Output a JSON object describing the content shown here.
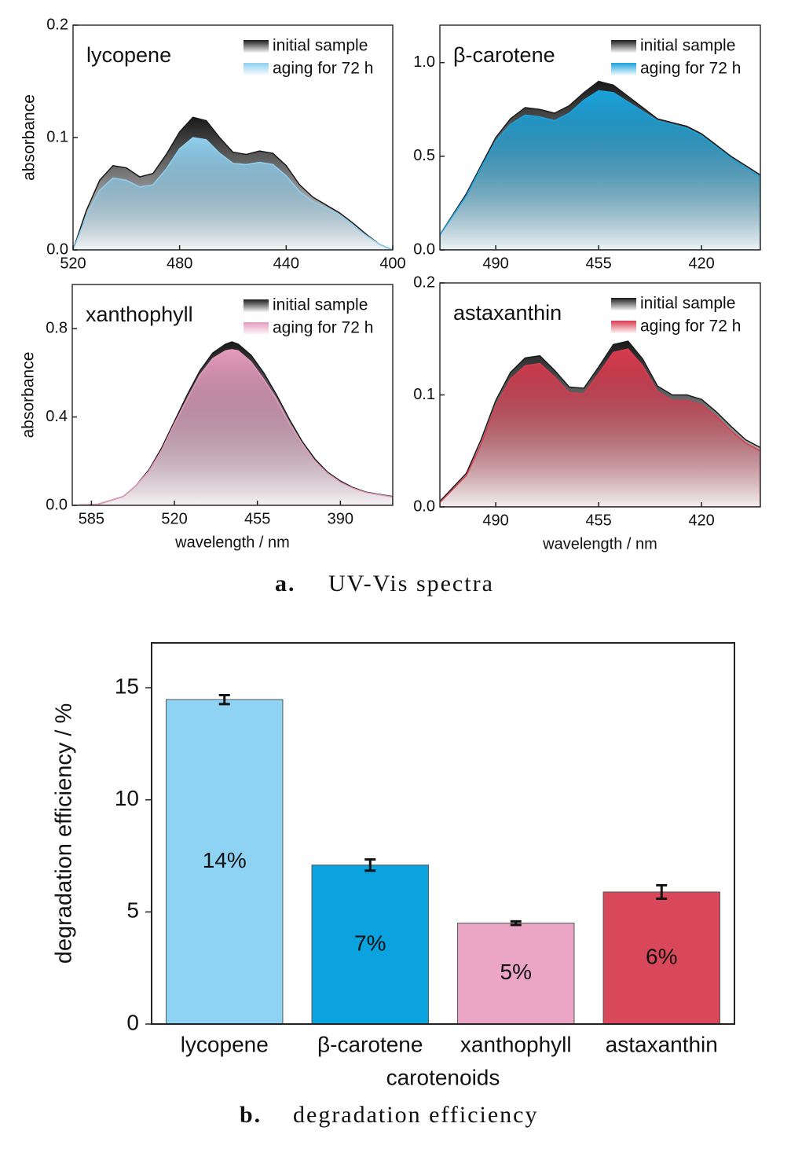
{
  "chart_data": [
    {
      "type": "area",
      "title": "lycopene",
      "y_label": "absorbance",
      "legend": "upper right",
      "x": [
        520,
        515,
        510,
        505,
        500,
        495,
        490,
        485,
        480,
        475,
        470,
        465,
        460,
        455,
        450,
        445,
        440,
        435,
        430,
        425,
        420,
        415,
        410,
        405,
        400
      ],
      "series": [
        {
          "name": "initial sample",
          "color": "#1a1a1a",
          "values": [
            0,
            0.035,
            0.062,
            0.075,
            0.073,
            0.065,
            0.068,
            0.085,
            0.105,
            0.118,
            0.115,
            0.1,
            0.087,
            0.085,
            0.088,
            0.086,
            0.075,
            0.058,
            0.047,
            0.04,
            0.033,
            0.024,
            0.014,
            0.005,
            0
          ]
        },
        {
          "name": "aging for 72 h",
          "color": "#8fd0f0",
          "values": [
            0,
            0.03,
            0.053,
            0.064,
            0.062,
            0.056,
            0.058,
            0.072,
            0.09,
            0.1,
            0.098,
            0.086,
            0.077,
            0.076,
            0.078,
            0.076,
            0.066,
            0.052,
            0.043,
            0.037,
            0.031,
            0.022,
            0.013,
            0.005,
            0
          ]
        }
      ],
      "xlim": [
        520,
        400
      ],
      "ylim": [
        0,
        0.2
      ],
      "xticks": [
        520,
        480,
        440,
        400
      ],
      "yticks": [
        {
          "value": 0,
          "label": "0.0"
        },
        0.1,
        0.2
      ]
    },
    {
      "type": "area",
      "title": "β-carotene",
      "legend": "upper right",
      "x": [
        509,
        500,
        495,
        490,
        485,
        480,
        475,
        470,
        465,
        460,
        455,
        450,
        445,
        440,
        435,
        430,
        425,
        420,
        415,
        410,
        405,
        400
      ],
      "series": [
        {
          "name": "initial sample",
          "color": "#1a1a1a",
          "values": [
            0.08,
            0.3,
            0.45,
            0.6,
            0.7,
            0.76,
            0.75,
            0.73,
            0.77,
            0.84,
            0.9,
            0.88,
            0.82,
            0.76,
            0.7,
            0.68,
            0.66,
            0.62,
            0.56,
            0.5,
            0.45,
            0.4
          ]
        },
        {
          "name": "aging for 72 h",
          "color": "#1aa3dc",
          "values": [
            0.08,
            0.29,
            0.44,
            0.58,
            0.67,
            0.72,
            0.71,
            0.69,
            0.73,
            0.8,
            0.85,
            0.84,
            0.79,
            0.74,
            0.69,
            0.67,
            0.65,
            0.61,
            0.55,
            0.49,
            0.44,
            0.39
          ]
        }
      ],
      "xlim": [
        509,
        400
      ],
      "ylim": [
        0,
        1.2
      ],
      "xticks": [
        490,
        455,
        420
      ],
      "yticks": [
        {
          "value": 0,
          "label": "0.0"
        },
        0.5,
        {
          "value": 1,
          "label": "1.0"
        }
      ]
    },
    {
      "type": "area",
      "title": "xanthophyll",
      "y_label": "absorbance",
      "x_label": "wavelength / nm",
      "legend": "upper right",
      "x": [
        600,
        580,
        560,
        550,
        540,
        530,
        520,
        510,
        500,
        490,
        480,
        475,
        470,
        460,
        450,
        440,
        430,
        420,
        410,
        400,
        390,
        380,
        370,
        360,
        349
      ],
      "series": [
        {
          "name": "initial sample",
          "color": "#1a1a1a",
          "values": [
            0,
            0.005,
            0.04,
            0.09,
            0.16,
            0.26,
            0.38,
            0.5,
            0.61,
            0.69,
            0.73,
            0.74,
            0.73,
            0.68,
            0.6,
            0.5,
            0.39,
            0.29,
            0.21,
            0.15,
            0.11,
            0.08,
            0.06,
            0.05,
            0.04
          ]
        },
        {
          "name": "aging for 72 h",
          "color": "#e59bbd",
          "values": [
            0,
            0.005,
            0.04,
            0.09,
            0.155,
            0.25,
            0.37,
            0.48,
            0.59,
            0.665,
            0.7,
            0.705,
            0.7,
            0.65,
            0.57,
            0.48,
            0.37,
            0.28,
            0.2,
            0.145,
            0.105,
            0.077,
            0.058,
            0.048,
            0.038
          ]
        }
      ],
      "xlim": [
        600,
        349
      ],
      "ylim": [
        0,
        1.0
      ],
      "xticks": [
        585,
        520,
        455,
        390
      ],
      "yticks": [
        {
          "value": 0,
          "label": "0.0"
        },
        0.4,
        0.8
      ]
    },
    {
      "type": "area",
      "title": "astaxanthin",
      "x_label": "wavelength / nm",
      "legend": "upper right",
      "x": [
        509,
        500,
        495,
        490,
        485,
        480,
        475,
        470,
        465,
        460,
        455,
        450,
        445,
        440,
        435,
        430,
        425,
        420,
        415,
        410,
        405,
        400
      ],
      "series": [
        {
          "name": "initial sample",
          "color": "#1a1a1a",
          "values": [
            0.005,
            0.03,
            0.06,
            0.095,
            0.12,
            0.133,
            0.135,
            0.122,
            0.107,
            0.106,
            0.125,
            0.145,
            0.148,
            0.132,
            0.108,
            0.1,
            0.1,
            0.096,
            0.085,
            0.072,
            0.06,
            0.053
          ]
        },
        {
          "name": "aging for 72 h",
          "color": "#d83a4e",
          "values": [
            0.004,
            0.028,
            0.056,
            0.09,
            0.114,
            0.126,
            0.128,
            0.116,
            0.102,
            0.101,
            0.119,
            0.138,
            0.141,
            0.126,
            0.103,
            0.095,
            0.095,
            0.091,
            0.081,
            0.068,
            0.057,
            0.05
          ]
        }
      ],
      "xlim": [
        509,
        400
      ],
      "ylim": [
        0,
        0.2
      ],
      "xticks": [
        490,
        455,
        420
      ],
      "yticks": [
        {
          "value": 0,
          "label": "0.0"
        },
        0.1,
        0.2
      ]
    },
    {
      "type": "bar",
      "x_label": "carotenoids",
      "y_label": "degradation efficiency / %",
      "categories": [
        "lycopene",
        "β-carotene",
        "xanthophyll",
        "astaxanthin"
      ],
      "values": [
        14.47,
        7.09,
        4.5,
        5.89
      ],
      "errors": [
        0.2,
        0.25,
        0.08,
        0.3
      ],
      "value_labels": [
        "14%",
        "7%",
        "5%",
        "6%"
      ],
      "colors": [
        "#8fd3f4",
        "#0aa3e0",
        "#eba6c6",
        "#d9485a"
      ],
      "ylim": [
        0,
        17
      ],
      "yticks": [
        0,
        5,
        10,
        15
      ]
    }
  ],
  "captions": [
    {
      "label": "a.",
      "text": "UV-Vis spectra"
    },
    {
      "label": "b.",
      "text": "degradation efficiency"
    }
  ]
}
